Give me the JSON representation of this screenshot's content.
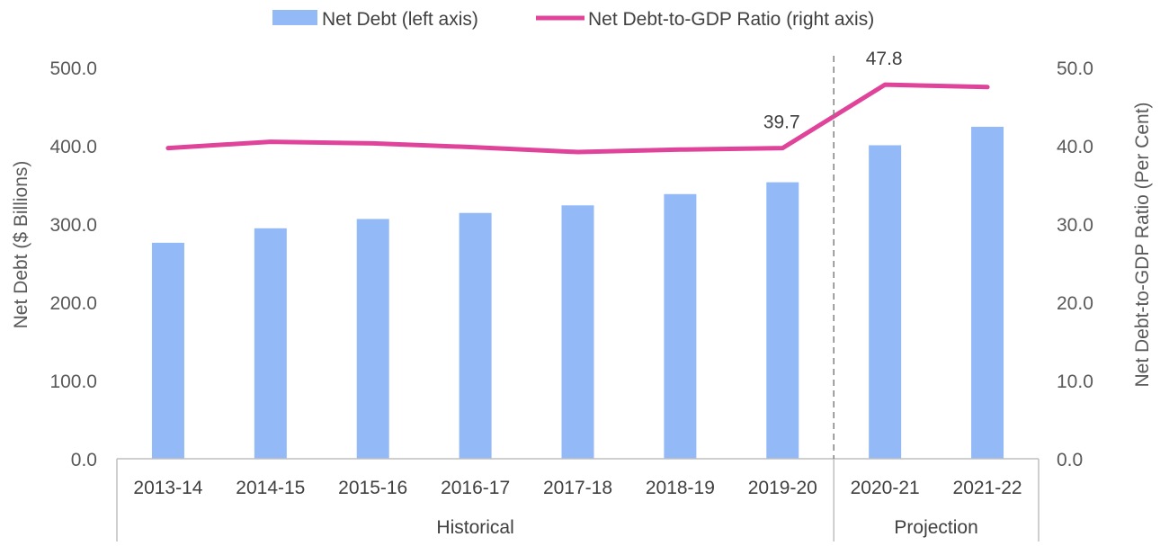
{
  "chart_data": {
    "type": "bar",
    "categories": [
      "2013-14",
      "2014-15",
      "2015-16",
      "2016-17",
      "2017-18",
      "2018-19",
      "2019-20",
      "2020-21",
      "2021-22"
    ],
    "groups": [
      {
        "label": "Historical",
        "categories": [
          "2013-14",
          "2014-15",
          "2015-16",
          "2016-17",
          "2017-18",
          "2018-19",
          "2019-20"
        ]
      },
      {
        "label": "Projection",
        "categories": [
          "2020-21",
          "2021-22"
        ]
      }
    ],
    "series": [
      {
        "name": "Net Debt (left axis)",
        "type": "bar",
        "axis": "left",
        "color": "#93BAF7",
        "values": [
          276.0,
          294.5,
          306.4,
          314.1,
          323.8,
          338.2,
          353.3,
          400.6,
          424.2
        ]
      },
      {
        "name": "Net Debt-to-GDP Ratio (right axis)",
        "type": "line",
        "axis": "right",
        "color": "#E0449A",
        "values": [
          39.7,
          40.5,
          40.3,
          39.8,
          39.2,
          39.5,
          39.7,
          47.8,
          47.5
        ]
      }
    ],
    "data_labels": [
      {
        "series": 1,
        "category": "2019-20",
        "text": "39.7"
      },
      {
        "series": 1,
        "category": "2020-21",
        "text": "47.8"
      }
    ],
    "left_axis": {
      "label": "Net Debt ($ Billions)",
      "range": [
        0,
        500
      ],
      "ticks": [
        "0.0",
        "100.0",
        "200.0",
        "300.0",
        "400.0",
        "500.0"
      ]
    },
    "right_axis": {
      "label": "Net Debt-to-GDP Ratio (Per Cent)",
      "range": [
        0,
        50
      ],
      "ticks": [
        "0.0",
        "10.0",
        "20.0",
        "30.0",
        "40.0",
        "50.0"
      ]
    },
    "projection_divider_after": "2019-20",
    "legend_position": "top",
    "grid": false
  }
}
